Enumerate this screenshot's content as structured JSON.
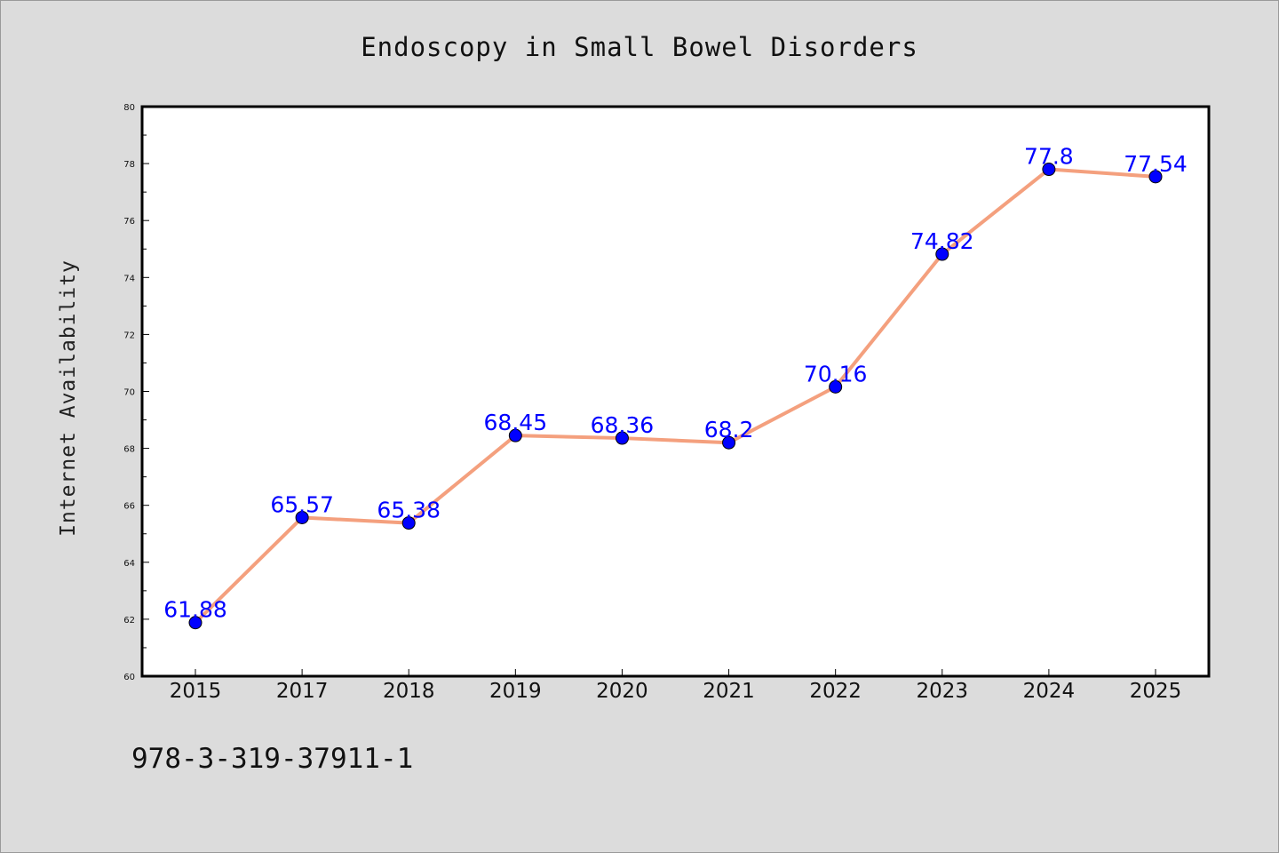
{
  "chart_data": {
    "type": "line",
    "title": "Endoscopy in Small Bowel Disorders",
    "xlabel": "",
    "ylabel": "Internet Availability",
    "categories": [
      "2015",
      "2017",
      "2018",
      "2019",
      "2020",
      "2021",
      "2022",
      "2023",
      "2024",
      "2025"
    ],
    "series": [
      {
        "values": [
          61.88,
          65.57,
          65.38,
          68.45,
          68.36,
          68.2,
          70.16,
          74.82,
          77.8,
          77.54
        ],
        "labels": [
          "61.88",
          "65.57",
          "65.38",
          "68.45",
          "68.36",
          "68.2",
          "70.16",
          "74.82",
          "77.8",
          "77.54"
        ],
        "line_color": "#f4a07e",
        "marker_color": "#0000ff"
      }
    ],
    "ylim": [
      60,
      80
    ],
    "yticks": [
      "60",
      "62",
      "64",
      "66",
      "68",
      "70",
      "72",
      "74",
      "76",
      "78",
      "80"
    ],
    "grid": false,
    "legend": "none"
  },
  "footer": {
    "text": "978-3-319-37911-1"
  },
  "colors": {
    "background": "#dcdcdc",
    "plot_background": "#ffffff",
    "label_color": "#0000ff"
  }
}
